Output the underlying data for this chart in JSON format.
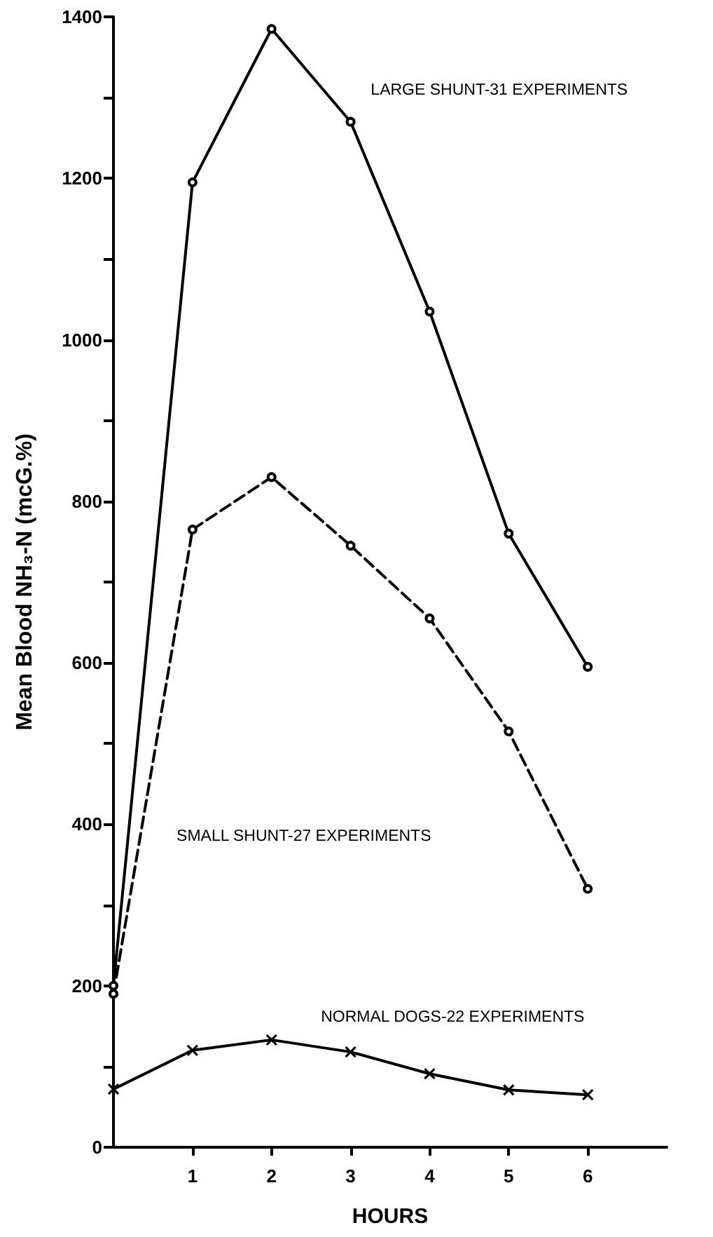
{
  "chart_data": {
    "type": "line",
    "xlabel": "HOURS",
    "ylabel": "Mean Blood NH₃-N (mcG.%)",
    "xlim": [
      0,
      7
    ],
    "xticks": [
      1,
      2,
      3,
      4,
      5,
      6
    ],
    "ylim": [
      0,
      1400
    ],
    "yticks": [
      0,
      {
        "value": 100,
        "label": null
      },
      200,
      {
        "value": 300,
        "label": null
      },
      400,
      {
        "value": 500,
        "label": null
      },
      600,
      {
        "value": 700,
        "label": null
      },
      800,
      {
        "value": 900,
        "label": null
      },
      1000,
      {
        "value": 1100,
        "label": null
      },
      1200,
      {
        "value": 1300,
        "label": null
      },
      1400
    ],
    "grid": false,
    "legend": false,
    "series": [
      {
        "name": "LARGE SHUNT-31 EXPERIMENTS",
        "color": "#000000",
        "line_style": "solid",
        "marker": "circle",
        "x": [
          0,
          1,
          2,
          3,
          4,
          5,
          6
        ],
        "values": [
          200,
          1195,
          1385,
          1270,
          1035,
          760,
          595
        ]
      },
      {
        "name": "SMALL SHUNT-27 EXPERIMENTS",
        "color": "#000000",
        "line_style": "dashed",
        "marker": "circle",
        "x": [
          0,
          1,
          2,
          3,
          4,
          5,
          6
        ],
        "values": [
          190,
          765,
          830,
          745,
          655,
          515,
          320
        ]
      },
      {
        "name": "NORMAL DOGS-22 EXPERIMENTS",
        "color": "#000000",
        "line_style": "solid",
        "marker": "cross",
        "x": [
          0,
          1,
          2,
          3,
          4,
          5,
          6
        ],
        "values": [
          72,
          120,
          133,
          118,
          91,
          71,
          65
        ]
      }
    ]
  }
}
